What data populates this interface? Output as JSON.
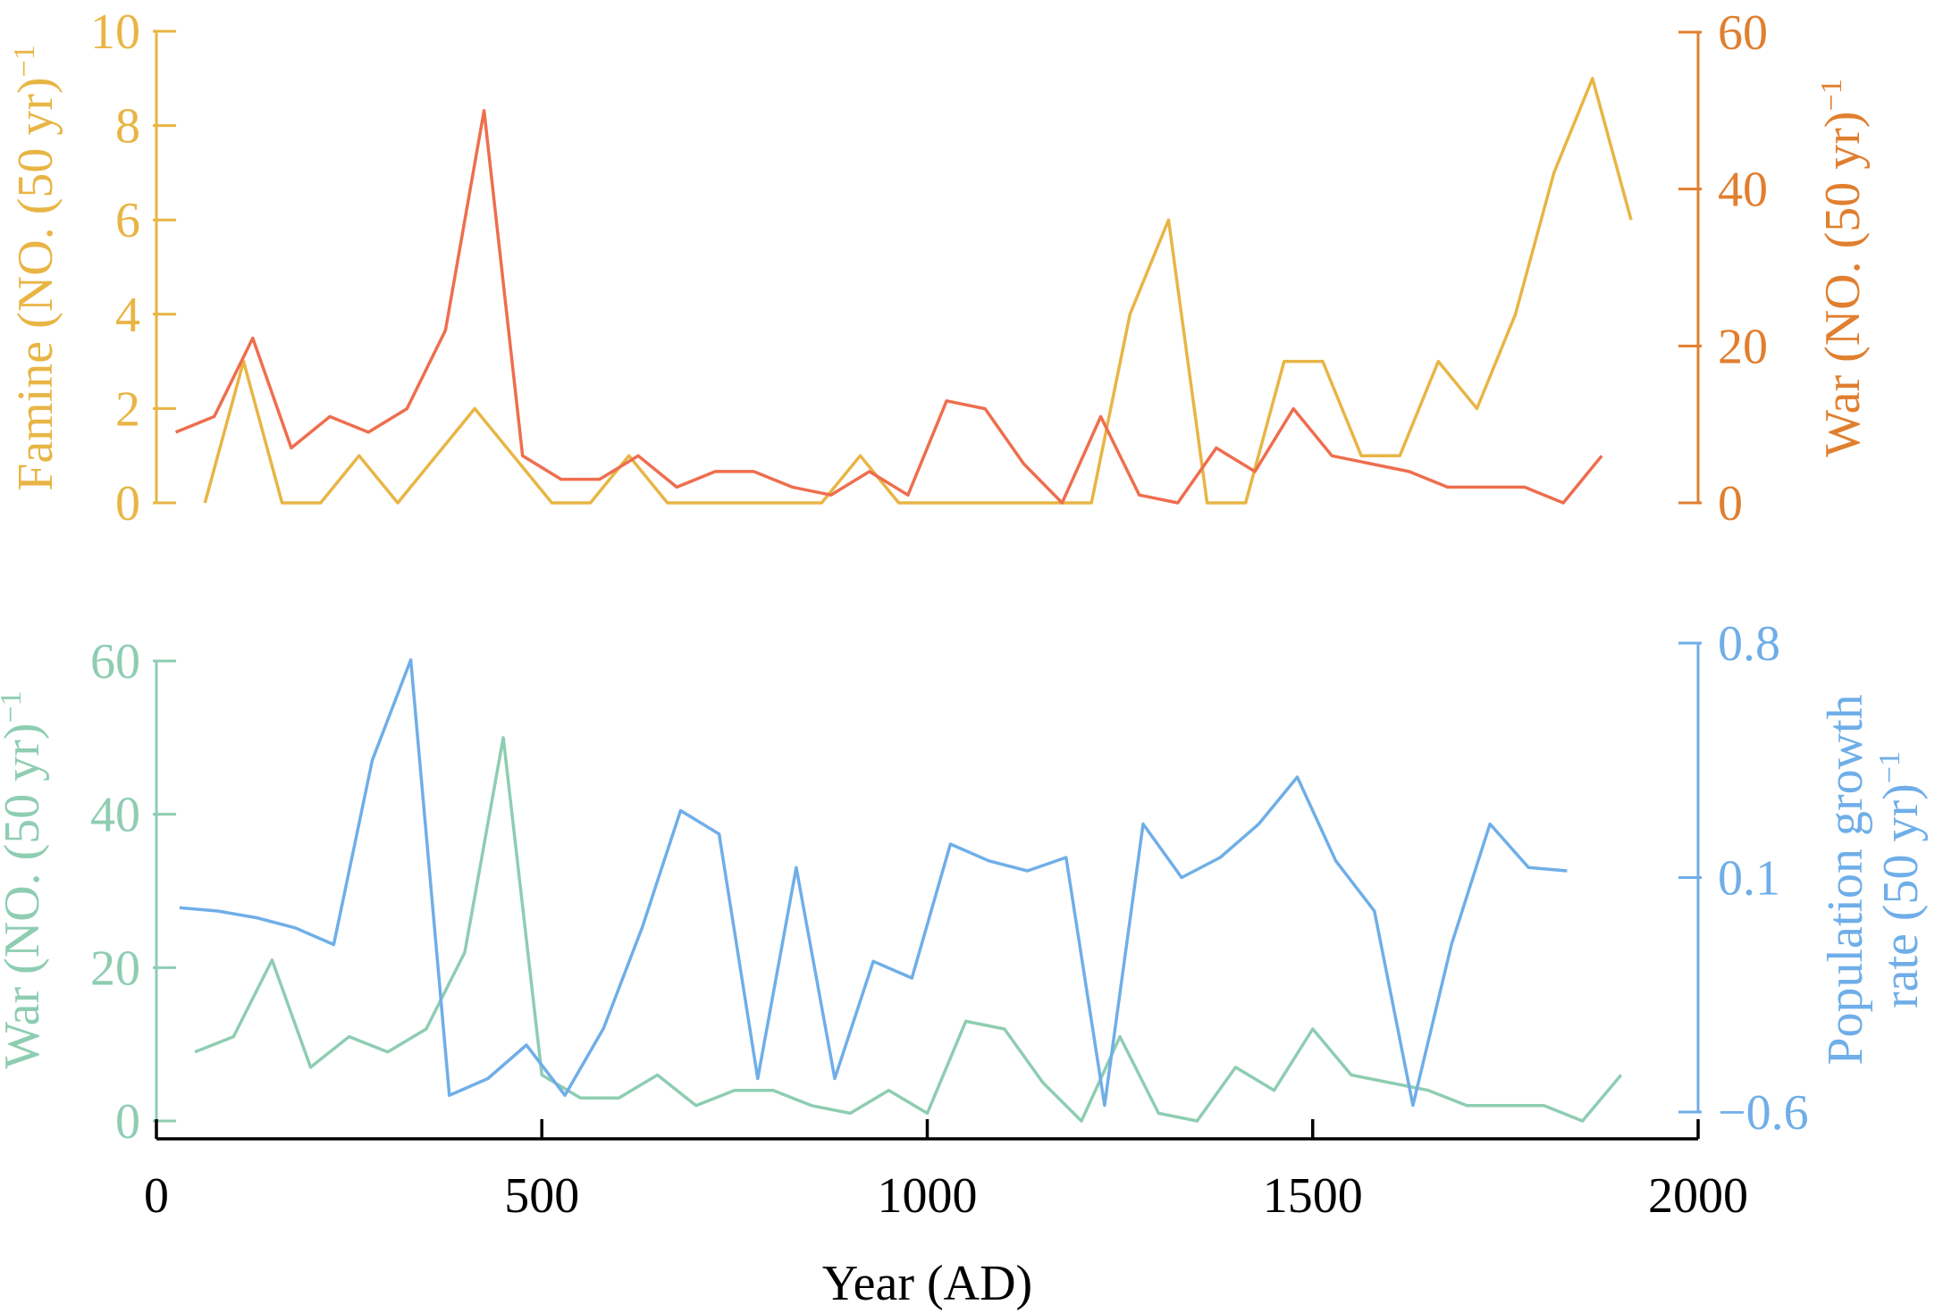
{
  "chart_data": [
    {
      "type": "line",
      "panel": "top",
      "left_axis": {
        "label": "Famine (NO. (50 yr)",
        "label_sup": "−1",
        "ylim": [
          0,
          10
        ],
        "ticks": [
          0,
          2,
          4,
          6,
          8,
          10
        ],
        "tick_labels": [
          "0",
          "2",
          "4",
          "6",
          "8",
          "10"
        ],
        "color": "#E8B545"
      },
      "right_axis": {
        "label": "War (NO. (50 yr)",
        "label_sup": "−1",
        "ylim": [
          0,
          60
        ],
        "ticks": [
          0,
          20,
          40,
          60
        ],
        "tick_labels": [
          "0",
          "20",
          "40",
          "60"
        ],
        "color": "#E07F2F"
      },
      "xlim": [
        0,
        2000
      ],
      "series": [
        {
          "axis": "left",
          "color": "#E8B545",
          "x": [
            63,
            113,
            163,
            213,
            263,
            313,
            363,
            413,
            463,
            513,
            563,
            613,
            663,
            713,
            763,
            813,
            863,
            913,
            963,
            1013,
            1063,
            1113,
            1163,
            1213,
            1263,
            1313,
            1363,
            1413,
            1463,
            1513,
            1563,
            1613,
            1663,
            1713,
            1763,
            1813,
            1863,
            1913
          ],
          "y": [
            0,
            3,
            0,
            0,
            1,
            0,
            1,
            2,
            1,
            0,
            0,
            1,
            0,
            0,
            0,
            0,
            0,
            1,
            0,
            0,
            0,
            0,
            0,
            0,
            4,
            6,
            0,
            0,
            3,
            3,
            1,
            1,
            3,
            2,
            4,
            7,
            9,
            6
          ]
        },
        {
          "axis": "right",
          "color": "#EE6E4E",
          "x": [
            25,
            75,
            125,
            175,
            225,
            275,
            325,
            375,
            425,
            475,
            525,
            575,
            625,
            675,
            725,
            775,
            825,
            875,
            925,
            975,
            1025,
            1075,
            1125,
            1175,
            1225,
            1275,
            1325,
            1375,
            1425,
            1475,
            1525,
            1575,
            1625,
            1675,
            1725,
            1775,
            1825,
            1875
          ],
          "y": [
            9,
            11,
            21,
            7,
            11,
            9,
            12,
            22,
            50,
            6,
            3,
            3,
            6,
            2,
            4,
            4,
            2,
            1,
            4,
            1,
            13,
            12,
            5,
            0,
            11,
            1,
            0,
            7,
            4,
            12,
            6,
            5,
            4,
            2,
            2,
            2,
            0,
            6
          ]
        }
      ]
    },
    {
      "type": "line",
      "panel": "bottom",
      "left_axis": {
        "label": "War (NO. (50 yr)",
        "label_sup": "−1",
        "ylim": [
          0,
          60
        ],
        "ticks": [
          0,
          20,
          40,
          60
        ],
        "tick_labels": [
          "0",
          "20",
          "40",
          "60"
        ],
        "color": "#8ECDB2"
      },
      "right_axis": {
        "label": "Population growth",
        "label2": "rate  (50 yr)",
        "label_sup": "−1",
        "ylim": [
          -0.6,
          0.8
        ],
        "ticks": [
          -0.6,
          0.1,
          0.8
        ],
        "tick_labels": [
          "−0.6",
          "0.1",
          "0.8"
        ],
        "color": "#6FAEE8"
      },
      "xlim": [
        0,
        2000
      ],
      "xlabel": "Year (AD)",
      "x_ticks": [
        0,
        500,
        1000,
        1500,
        2000
      ],
      "x_tick_labels": [
        "0",
        "500",
        "1000",
        "1500",
        "2000"
      ],
      "series": [
        {
          "axis": "left",
          "color": "#8ECDB2",
          "x": [
            50,
            100,
            150,
            200,
            250,
            300,
            350,
            400,
            450,
            500,
            550,
            600,
            650,
            700,
            750,
            800,
            850,
            900,
            950,
            1000,
            1050,
            1100,
            1150,
            1200,
            1250,
            1300,
            1350,
            1400,
            1450,
            1500,
            1550,
            1600,
            1650,
            1700,
            1750,
            1800,
            1850,
            1900
          ],
          "y": [
            9,
            11,
            21,
            7,
            11,
            9,
            12,
            22,
            50,
            6,
            3,
            3,
            6,
            2,
            4,
            4,
            2,
            1,
            4,
            1,
            13,
            12,
            5,
            0,
            11,
            1,
            0,
            7,
            4,
            12,
            6,
            5,
            4,
            2,
            2,
            2,
            0,
            6
          ]
        },
        {
          "axis": "right",
          "color": "#6FAEE8",
          "x": [
            30,
            80,
            130,
            180,
            230,
            280,
            330,
            380,
            430,
            480,
            530,
            580,
            630,
            680,
            730,
            780,
            830,
            880,
            930,
            980,
            1030,
            1080,
            1130,
            1180,
            1230,
            1280,
            1330,
            1380,
            1430,
            1480,
            1530,
            1580,
            1630,
            1680,
            1730,
            1780,
            1830
          ],
          "y": [
            0.01,
            0.0,
            -0.02,
            -0.05,
            -0.1,
            0.45,
            0.75,
            -0.55,
            -0.5,
            -0.4,
            -0.55,
            -0.35,
            -0.05,
            0.3,
            0.23,
            -0.5,
            0.13,
            -0.5,
            -0.15,
            -0.2,
            0.2,
            0.15,
            0.12,
            0.16,
            -0.58,
            0.26,
            0.1,
            0.16,
            0.26,
            0.4,
            0.15,
            0.0,
            -0.58,
            -0.1,
            0.26,
            0.13,
            0.12
          ]
        }
      ]
    }
  ]
}
